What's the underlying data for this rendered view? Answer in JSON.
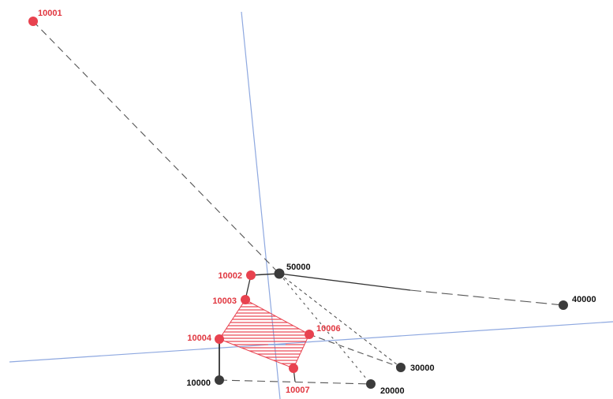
{
  "colors": {
    "red_node": "#e8424f",
    "dark_node": "#3b3b3b",
    "red_label": "#e0363f",
    "dark_label": "#111111",
    "blue_line": "#8ea8e0",
    "edge": "#444444",
    "hatch": "#e8424f"
  },
  "red_nodes": [
    {
      "id": "n10001",
      "label": "10001"
    },
    {
      "id": "n10002",
      "label": "10002"
    },
    {
      "id": "n10003",
      "label": "10003"
    },
    {
      "id": "n10004",
      "label": "10004"
    },
    {
      "id": "n10006",
      "label": "10006"
    },
    {
      "id": "n10007",
      "label": "10007"
    }
  ],
  "dark_nodes": [
    {
      "id": "n50000",
      "label": "50000"
    },
    {
      "id": "n40000",
      "label": "40000"
    },
    {
      "id": "n30000",
      "label": "30000"
    },
    {
      "id": "n20000",
      "label": "20000"
    },
    {
      "id": "n10000",
      "label": "10000"
    }
  ]
}
